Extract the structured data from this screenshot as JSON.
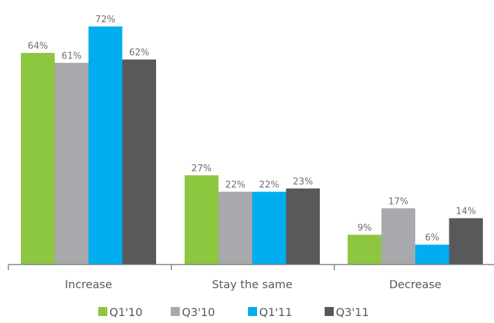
{
  "chart_data": {
    "type": "bar",
    "title": "",
    "xlabel": "",
    "ylabel": "",
    "ylim": [
      0,
      80
    ],
    "grid": false,
    "legend_position": "bottom",
    "categories": [
      "Increase",
      "Stay the same",
      "Decrease"
    ],
    "series": [
      {
        "name": "Q1'10",
        "color": "#8dc63f",
        "values": [
          64,
          27,
          9
        ],
        "labels": [
          "64%",
          "27%",
          "9%"
        ]
      },
      {
        "name": "Q3'10",
        "color": "#a7a9ac",
        "values": [
          61,
          22,
          17
        ],
        "labels": [
          "61%",
          "22%",
          "17%"
        ]
      },
      {
        "name": "Q1'11",
        "color": "#00aeef",
        "values": [
          72,
          22,
          6
        ],
        "labels": [
          "72%",
          "22%",
          "6%"
        ]
      },
      {
        "name": "Q3'11",
        "color": "#58595b",
        "values": [
          62,
          23,
          14
        ],
        "labels": [
          "62%",
          "23%",
          "14%"
        ]
      }
    ]
  }
}
